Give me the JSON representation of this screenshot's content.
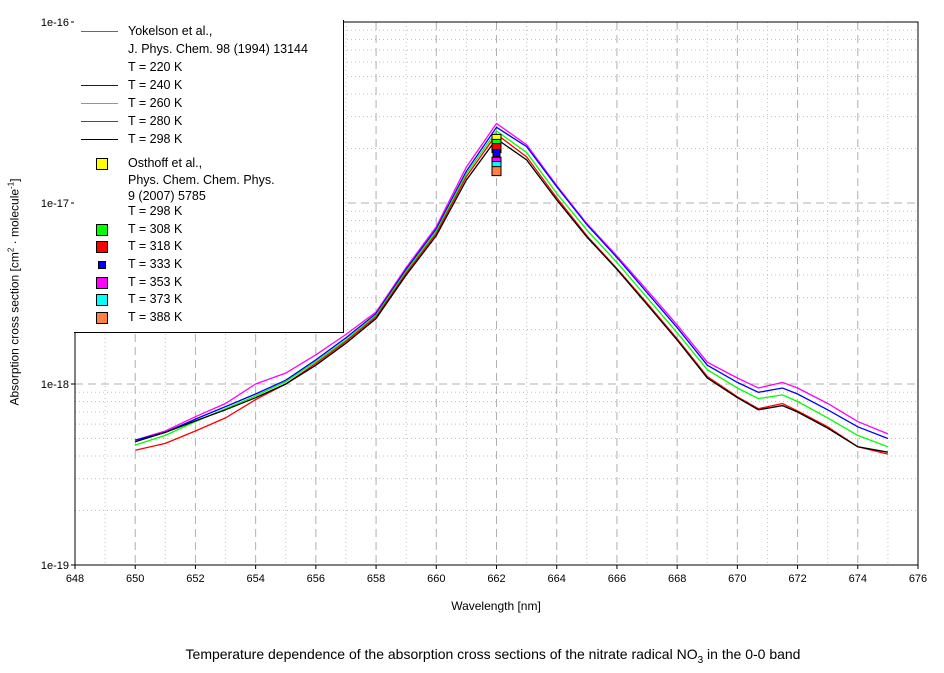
{
  "chart_data": {
    "type": "line",
    "title": "Temperature dependence of the absorption cross sections of the nitrate radical NO3 in the 0-0 band",
    "caption": {
      "pre": "Temperature dependence of the absorption cross sections of the nitrate radical NO",
      "sub": "3",
      "post": " in the 0-0 band"
    },
    "xlabel": "Wavelength [nm]",
    "ylabel": {
      "pre": "Absorption cross section [cm",
      "sup1": "2",
      "mid": " · molecule",
      "sup2": "-1",
      "post": "]"
    },
    "xlim": [
      648,
      676
    ],
    "ylim": [
      1e-19,
      1e-16
    ],
    "yscale": "log",
    "grid": true,
    "legend_placement": "top-left",
    "x_ticks": [
      "648",
      "650",
      "652",
      "654",
      "656",
      "658",
      "660",
      "662",
      "664",
      "666",
      "668",
      "670",
      "672",
      "674",
      "676"
    ],
    "y_ticks": [
      "1e-19",
      "1e-18",
      "1e-17",
      "1e-16"
    ],
    "x": [
      650,
      651,
      652,
      653,
      654,
      655,
      656,
      657,
      658,
      659,
      660,
      661,
      662,
      663,
      664,
      665,
      666,
      667,
      668,
      669,
      670,
      670.7,
      671.5,
      672,
      673,
      674,
      675
    ],
    "series": [
      {
        "name": "T = 220 K",
        "source": "Yokelson et al.,",
        "ref": "J. Phys. Chem. 98 (1994) 13144",
        "color": "#ff00ff",
        "values": [
          4.9e-19,
          5.5e-19,
          6.6e-19,
          7.8e-19,
          1e-18,
          1.15e-18,
          1.45e-18,
          1.88e-18,
          2.5e-18,
          4.4e-18,
          7.4e-18,
          1.58e-17,
          2.75e-17,
          2.1e-17,
          1.25e-17,
          7.7e-18,
          5.1e-18,
          3.3e-18,
          2.12e-18,
          1.32e-18,
          1.08e-18,
          9.5e-19,
          1.02e-18,
          9.5e-19,
          7.8e-19,
          6.2e-19,
          5.3e-19
        ]
      },
      {
        "name": "T = 240 K",
        "color": "#0000ff",
        "values": [
          4.9e-19,
          5.4e-19,
          6.4e-19,
          7.5e-19,
          8.8e-19,
          1.05e-18,
          1.36e-18,
          1.8e-18,
          2.45e-18,
          4.3e-18,
          7.2e-18,
          1.5e-17,
          2.62e-17,
          2.05e-17,
          1.23e-17,
          7.6e-18,
          5e-18,
          3.2e-18,
          2.05e-18,
          1.27e-18,
          1.02e-18,
          9e-19,
          9.5e-19,
          8.8e-19,
          7.2e-19,
          5.8e-19,
          5e-19
        ]
      },
      {
        "name": "T = 260 K",
        "color": "#00ff00",
        "values": [
          4.6e-19,
          5.2e-19,
          6.2e-19,
          7.3e-19,
          8.6e-19,
          1.03e-18,
          1.33e-18,
          1.75e-18,
          2.4e-18,
          4.2e-18,
          7e-18,
          1.45e-17,
          2.5e-17,
          1.9e-17,
          1.13e-17,
          7.1e-18,
          4.7e-18,
          3e-18,
          1.92e-18,
          1.2e-18,
          9.5e-19,
          8.3e-19,
          8.7e-19,
          8e-19,
          6.5e-19,
          5.2e-19,
          4.5e-19
        ]
      },
      {
        "name": "T = 280 K",
        "color": "#ff0000",
        "values": [
          4.3e-19,
          4.7e-19,
          5.5e-19,
          6.5e-19,
          8.2e-19,
          1e-18,
          1.3e-18,
          1.72e-18,
          2.35e-18,
          4.1e-18,
          6.8e-18,
          1.4e-17,
          2.4e-17,
          1.8e-17,
          1.07e-17,
          6.6e-18,
          4.35e-18,
          2.8e-18,
          1.78e-18,
          1.1e-18,
          8.5e-19,
          7.3e-19,
          7.8e-19,
          7.1e-19,
          5.8e-19,
          4.5e-19,
          4.1e-19
        ]
      },
      {
        "name": "T = 298 K",
        "color": "#000000",
        "values": [
          4.8e-19,
          5.4e-19,
          6.25e-19,
          7.2e-19,
          8.4e-19,
          1e-18,
          1.27e-18,
          1.68e-18,
          2.3e-18,
          4e-18,
          6.6e-18,
          1.34e-17,
          2.26e-17,
          1.73e-17,
          1.04e-17,
          6.5e-18,
          4.3e-18,
          2.75e-18,
          1.75e-18,
          1.08e-18,
          8.4e-19,
          7.2e-19,
          7.6e-19,
          7e-19,
          5.7e-19,
          4.5e-19,
          4.2e-19
        ]
      }
    ],
    "points": {
      "source": "Osthoff et al.,",
      "ref1": "Phys. Chem. Chem. Phys.",
      "ref2": "9 (2007) 5785",
      "items": [
        {
          "name": "T = 298 K",
          "x": 662,
          "y": 2.26e-17,
          "color": "#ffff00"
        },
        {
          "name": "T = 308 K",
          "x": 662,
          "y": 2.12e-17,
          "color": "#00ff00"
        },
        {
          "name": "T = 318 K",
          "x": 662,
          "y": 2.01e-17,
          "color": "#ff0000"
        },
        {
          "name": "T = 333 K",
          "x": 662,
          "y": 1.89e-17,
          "color": "#0000ff"
        },
        {
          "name": "T = 353 K",
          "x": 662,
          "y": 1.69e-17,
          "color": "#ff00ff"
        },
        {
          "name": "T = 373 K",
          "x": 662,
          "y": 1.6e-17,
          "color": "#00ffff"
        },
        {
          "name": "T = 388 K",
          "x": 662,
          "y": 1.5e-17,
          "color": "#ff8040"
        }
      ]
    }
  }
}
